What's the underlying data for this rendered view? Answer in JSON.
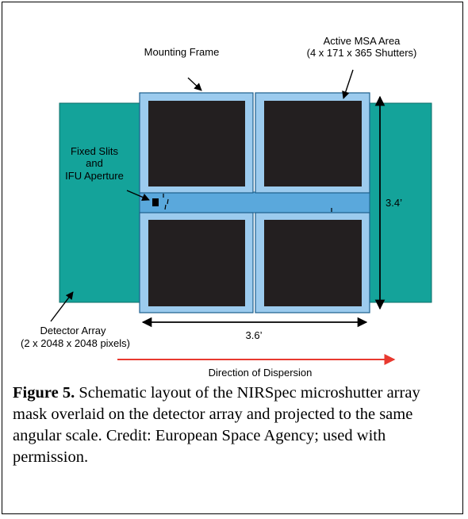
{
  "diagram": {
    "labels": {
      "mounting_frame": "Mounting Frame",
      "active_msa_line1": "Active MSA Area",
      "active_msa_line2": "(4 x 171 x 365 Shutters)",
      "fixed_slits_line1": "Fixed Slits",
      "fixed_slits_line2": "and",
      "fixed_slits_line3": "IFU Aperture",
      "detector_array_line1": "Detector Array",
      "detector_array_line2": "(2 x 2048 x 2048 pixels)",
      "height_dimension": "3.4’",
      "width_dimension": "3.6’",
      "dispersion": "Direction of Dispersion"
    },
    "colors": {
      "detector": "#14a39a",
      "frame": "#9ccbee",
      "frame_outline": "#1d5f8c",
      "shutter": "#231f20",
      "dispersion_arrow": "#e8392f"
    }
  },
  "caption": {
    "figure_number": "Figure 5.",
    "text": " Schematic layout of the NIRSpec microshutter array mask overlaid on the detector array and projected to the same angular scale. Credit: European Space Agency; used with permission."
  }
}
